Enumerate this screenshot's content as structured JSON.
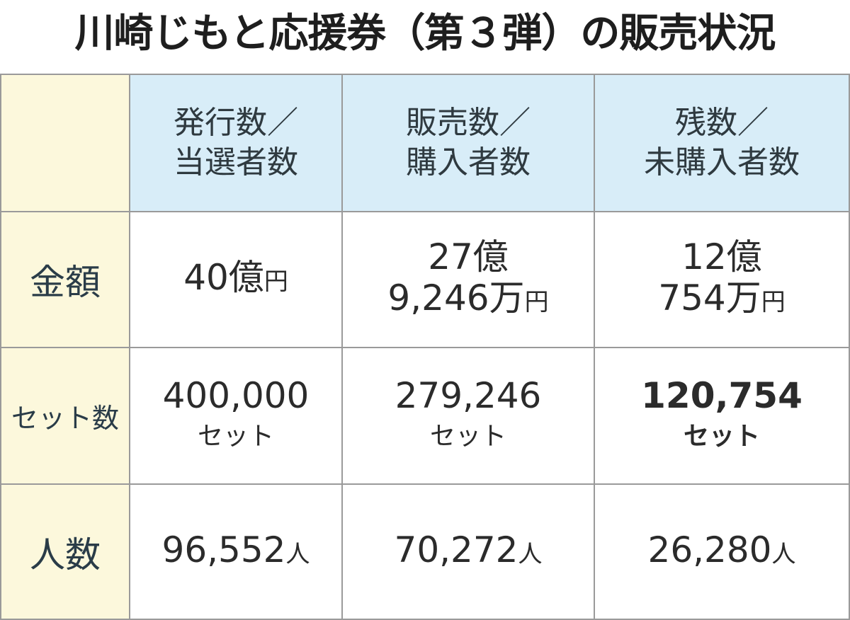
{
  "title": "川崎じもと応援券（第３弾）の販売状況",
  "table": {
    "columns": [
      {
        "lines": [
          "発行数／",
          "当選者数"
        ]
      },
      {
        "lines": [
          "販売数／",
          "購入者数"
        ]
      },
      {
        "lines": [
          "残数／",
          "未購入者数"
        ]
      }
    ],
    "rows": [
      {
        "label": "金額",
        "cells": [
          {
            "lines": [
              {
                "text": "40億",
                "unit": "円"
              }
            ]
          },
          {
            "lines": [
              {
                "text": "27億"
              },
              {
                "text": "9,246万",
                "unit": "円"
              }
            ]
          },
          {
            "lines": [
              {
                "text": "12億"
              },
              {
                "text": "754万",
                "unit": "円"
              }
            ]
          }
        ]
      },
      {
        "label": "セット数",
        "cells": [
          {
            "lines": [
              {
                "text": "400,000"
              },
              {
                "text": "セット",
                "small": true
              }
            ]
          },
          {
            "lines": [
              {
                "text": "279,246"
              },
              {
                "text": "セット",
                "small": true
              }
            ]
          },
          {
            "bold": true,
            "lines": [
              {
                "text": "120,754"
              },
              {
                "text": "セット",
                "small": true
              }
            ]
          }
        ]
      },
      {
        "label": "人数",
        "cells": [
          {
            "lines": [
              {
                "text": "96,552",
                "unit": "人"
              }
            ]
          },
          {
            "lines": [
              {
                "text": "70,272",
                "unit": "人"
              }
            ]
          },
          {
            "lines": [
              {
                "text": "26,280",
                "unit": "人"
              }
            ]
          }
        ]
      }
    ]
  }
}
